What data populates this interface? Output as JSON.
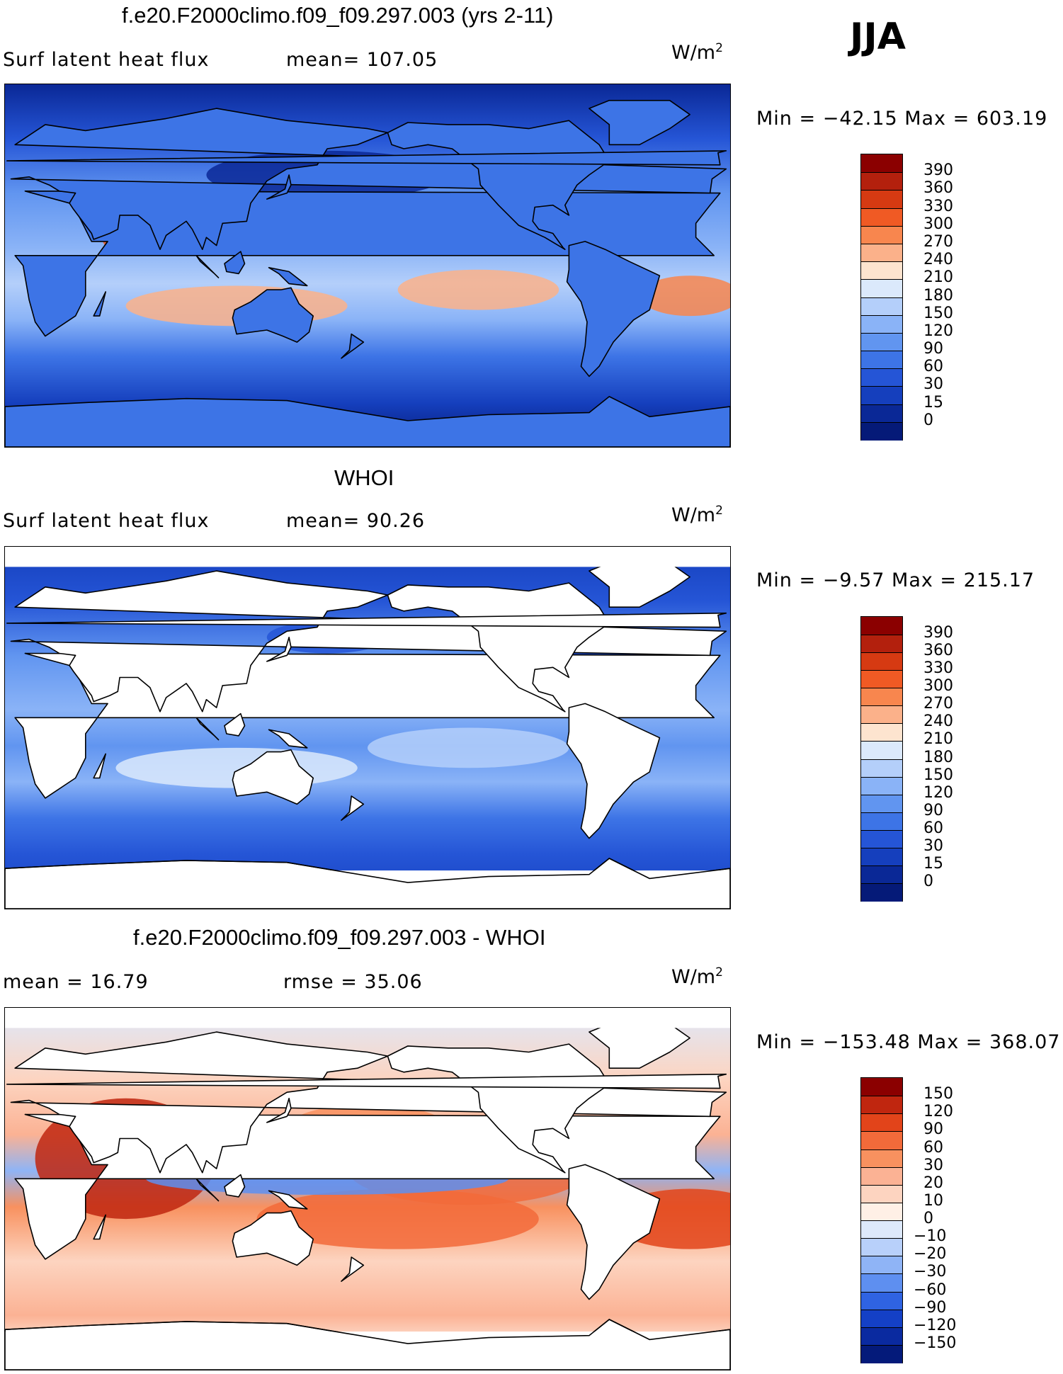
{
  "season": "JJA",
  "unit": {
    "base": "W/m",
    "exp": "2"
  },
  "chart_data": [
    {
      "type": "heatmap",
      "panel": "model",
      "title": "f.e20.F2000climo.f09_f09.297.003 (yrs 2-11)",
      "left_label": "Surf latent heat flux",
      "stat_label": "mean=",
      "stat_value": "107.05",
      "min_label": "Min  =  −42.15",
      "max_label": "Max  =  603.19",
      "min": -42.15,
      "max": 603.19,
      "legend_levels": [
        "390",
        "360",
        "330",
        "300",
        "270",
        "240",
        "210",
        "180",
        "150",
        "120",
        "90",
        "60",
        "30",
        "15",
        "0"
      ],
      "legend_colors": [
        "#8b0000",
        "#b3200d",
        "#d63a12",
        "#f05a24",
        "#f8864e",
        "#fbb18a",
        "#fde4cf",
        "#dbe9fb",
        "#b4cffa",
        "#8ab3f7",
        "#6195f0",
        "#3d74e6",
        "#2555d6",
        "#153fbd",
        "#0a2896",
        "#051a78"
      ],
      "land_masked": false
    },
    {
      "type": "heatmap",
      "panel": "obs",
      "title": "WHOI",
      "left_label": "Surf latent heat flux",
      "stat_label": "mean=",
      "stat_value": " 90.26",
      "min_label": "Min  =   −9.57",
      "max_label": "Max  =  215.17",
      "min": -9.57,
      "max": 215.17,
      "legend_levels": [
        "390",
        "360",
        "330",
        "300",
        "270",
        "240",
        "210",
        "180",
        "150",
        "120",
        "90",
        "60",
        "30",
        "15",
        "0"
      ],
      "legend_colors": [
        "#8b0000",
        "#b3200d",
        "#d63a12",
        "#f05a24",
        "#f8864e",
        "#fbb18a",
        "#fde4cf",
        "#dbe9fb",
        "#b4cffa",
        "#8ab3f7",
        "#6195f0",
        "#3d74e6",
        "#2555d6",
        "#153fbd",
        "#0a2896",
        "#051a78"
      ],
      "land_masked": true
    },
    {
      "type": "heatmap",
      "panel": "diff",
      "title": "f.e20.F2000climo.f09_f09.297.003 - WHOI",
      "left_label": "mean =   16.79",
      "stat_label": "rmse =",
      "stat_value": " 35.06",
      "min_label": "Min  =  −153.48",
      "max_label": "Max  =  368.07",
      "min": -153.48,
      "max": 368.07,
      "legend_levels": [
        "150",
        "120",
        "90",
        "60",
        "30",
        "20",
        "10",
        "0",
        "−10",
        "−20",
        "−30",
        "−60",
        "−90",
        "−120",
        "−150"
      ],
      "legend_colors": [
        "#8b0000",
        "#c0260f",
        "#e2441a",
        "#f26a3a",
        "#f8915f",
        "#fbb294",
        "#fdd4c0",
        "#fff0e6",
        "#dde9fb",
        "#b8d0fa",
        "#8fb4f6",
        "#5e8ff0",
        "#2f63e2",
        "#1440c6",
        "#0a2aa0",
        "#041a7a"
      ],
      "land_masked": true
    }
  ]
}
